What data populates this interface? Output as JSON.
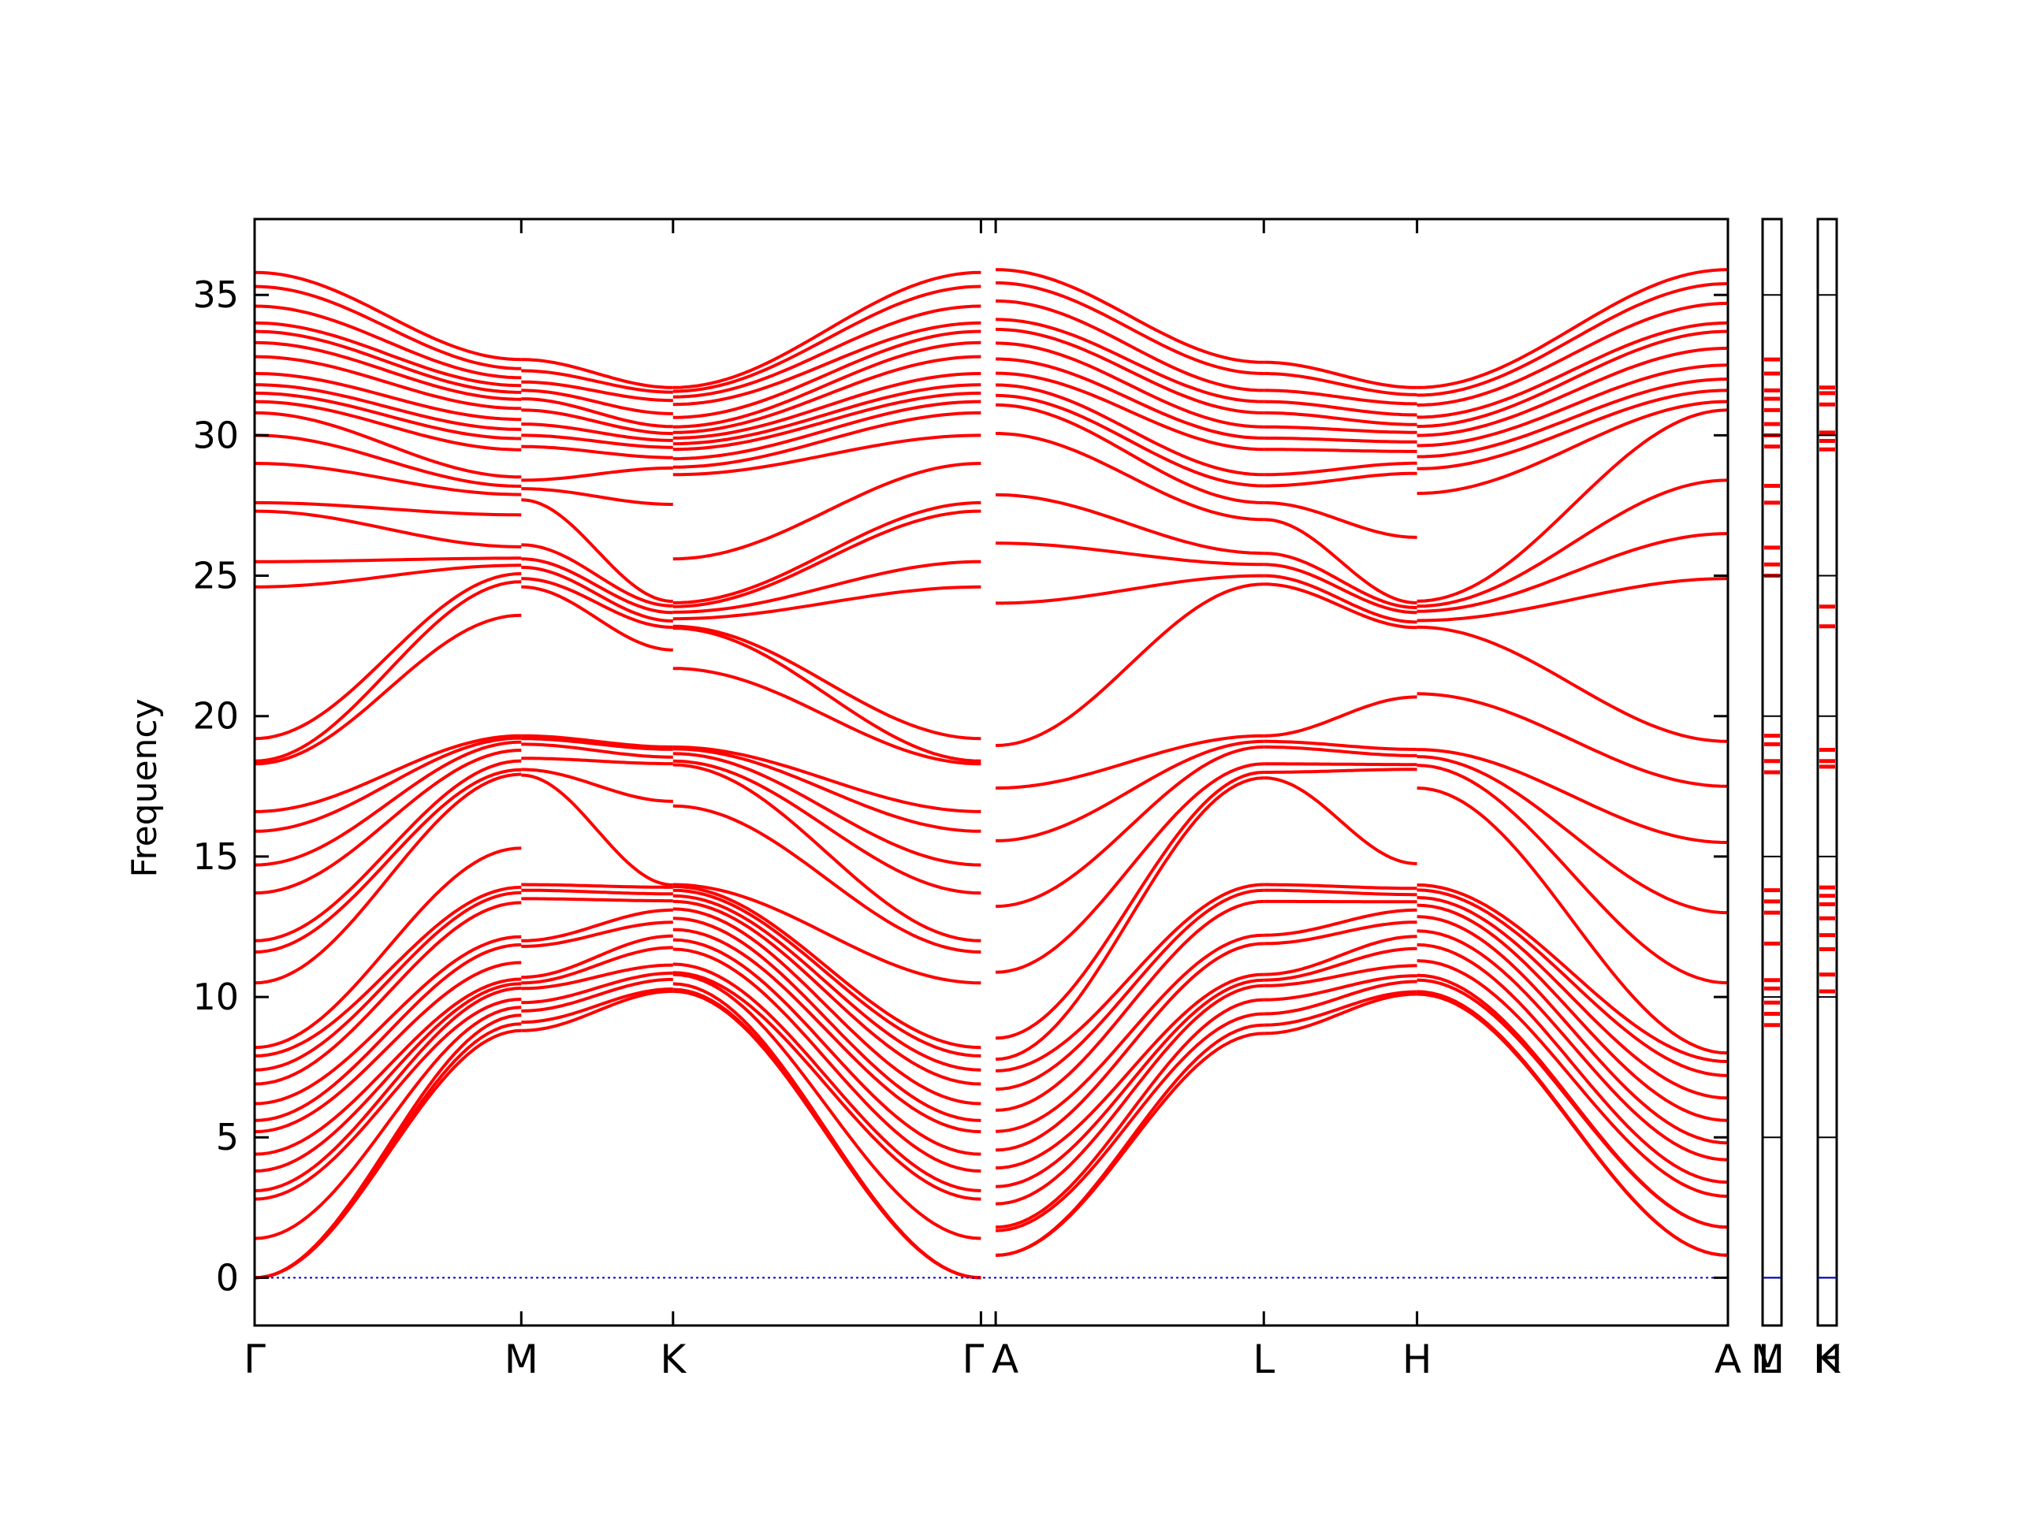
{
  "chart_data": {
    "type": "line",
    "title": "",
    "ylabel": "Frequency",
    "ylim": [
      -1.7,
      37.7
    ],
    "yticks": [
      0,
      5,
      10,
      15,
      20,
      25,
      30,
      35
    ],
    "grid": false,
    "series_color": "#ff0000",
    "zero_line_color": "#0000cc",
    "kpoints": [
      {
        "label": "Γ",
        "x": 0.0
      },
      {
        "label": "M",
        "x": 0.181
      },
      {
        "label": "K",
        "x": 0.284
      },
      {
        "label": "Γ",
        "x": 0.493
      },
      {
        "label": "A",
        "x": 0.503
      },
      {
        "label": "L",
        "x": 0.685
      },
      {
        "label": "H",
        "x": 0.789
      },
      {
        "label": "A",
        "x": 1.0
      }
    ],
    "side_panels": [
      {
        "labels": [
          "L",
          "M"
        ]
      },
      {
        "labels": [
          "H",
          "K"
        ]
      }
    ],
    "bands_at_gamma": [
      0,
      0,
      0,
      1.4,
      2.8,
      3.1,
      3.8,
      4.4,
      5.2,
      5.6,
      6.2,
      6.9,
      7.4,
      7.9,
      8.2,
      10.5,
      11.6,
      12.0,
      13.7,
      14.7,
      15.9,
      16.6,
      18.3,
      18.4,
      19.2,
      24.6,
      25.5,
      27.3,
      27.6,
      29.0,
      30.0,
      30.8,
      31.2,
      31.5,
      31.8,
      32.2,
      32.8,
      33.3,
      33.7,
      34.0,
      34.6,
      35.3,
      35.8
    ],
    "bands_at_A": [
      0.8,
      0.8,
      1.8,
      1.8,
      2.9,
      3.4,
      4.2,
      4.8,
      5.6,
      6.4,
      7.2,
      7.7,
      8.0,
      10.5,
      13.0,
      15.5,
      17.5,
      19.1,
      24.9,
      26.5,
      28.4,
      30.9,
      31.2,
      31.6,
      32.0,
      32.5,
      33.1,
      33.7,
      34.0,
      34.7,
      35.4,
      35.9
    ],
    "bands_at_M": [
      8.8,
      9.1,
      9.5,
      9.8,
      10.3,
      10.5,
      10.7,
      11.8,
      12.0,
      13.5,
      13.8,
      14.0,
      17.9,
      18.1,
      18.5,
      19.0,
      19.2,
      19.3,
      24.6,
      24.9,
      25.3,
      25.6,
      26.1,
      27.7,
      28.1,
      28.4,
      29.6,
      30.0,
      30.4,
      30.9,
      31.3,
      31.6,
      31.9,
      32.3,
      32.7
    ],
    "bands_at_K": [
      10.2,
      10.3,
      10.8,
      10.9,
      11.7,
      12.2,
      12.8,
      13.3,
      13.6,
      13.9,
      14.0,
      18.2,
      18.4,
      18.8,
      18.9,
      23.1,
      23.2,
      23.6,
      23.9,
      24.1,
      28.6,
      29.0,
      29.5,
      29.8,
      30.1,
      30.4,
      31.1,
      31.5,
      31.7
    ],
    "bands_at_L": [
      8.7,
      9.0,
      9.4,
      9.9,
      10.4,
      10.6,
      10.8,
      11.9,
      12.2,
      13.4,
      13.8,
      14.0,
      17.8,
      18.0,
      18.3,
      18.9,
      19.1,
      19.3,
      24.7,
      25.0,
      25.4,
      25.8,
      27.0,
      27.6,
      28.2,
      28.6,
      29.5,
      29.9,
      30.3,
      30.8,
      31.2,
      31.6,
      32.2,
      32.6
    ],
    "bands_at_H": [
      10.1,
      10.2,
      10.7,
      10.8,
      11.6,
      12.1,
      12.7,
      13.2,
      13.5,
      13.8,
      14.0,
      18.1,
      18.3,
      18.7,
      18.9,
      23.1,
      23.3,
      23.7,
      23.9,
      24.1,
      28.5,
      28.9,
      29.4,
      29.8,
      30.2,
      30.5,
      31.0,
      31.4,
      31.7
    ],
    "side_panel_levels": [
      [
        9.0,
        9.4,
        9.8,
        10.3,
        10.6,
        11.9,
        13.0,
        13.4,
        13.8,
        18.0,
        18.4,
        19.0,
        19.3,
        25.0,
        25.4,
        26.0,
        27.6,
        28.2,
        29.6,
        30.0,
        30.4,
        30.9,
        31.3,
        31.6,
        32.2,
        32.7
      ],
      [
        10.2,
        10.8,
        11.7,
        12.2,
        12.8,
        13.3,
        13.6,
        13.9,
        18.2,
        18.4,
        18.8,
        23.2,
        23.9,
        29.5,
        29.8,
        30.1,
        31.1,
        31.5,
        31.7
      ]
    ]
  }
}
